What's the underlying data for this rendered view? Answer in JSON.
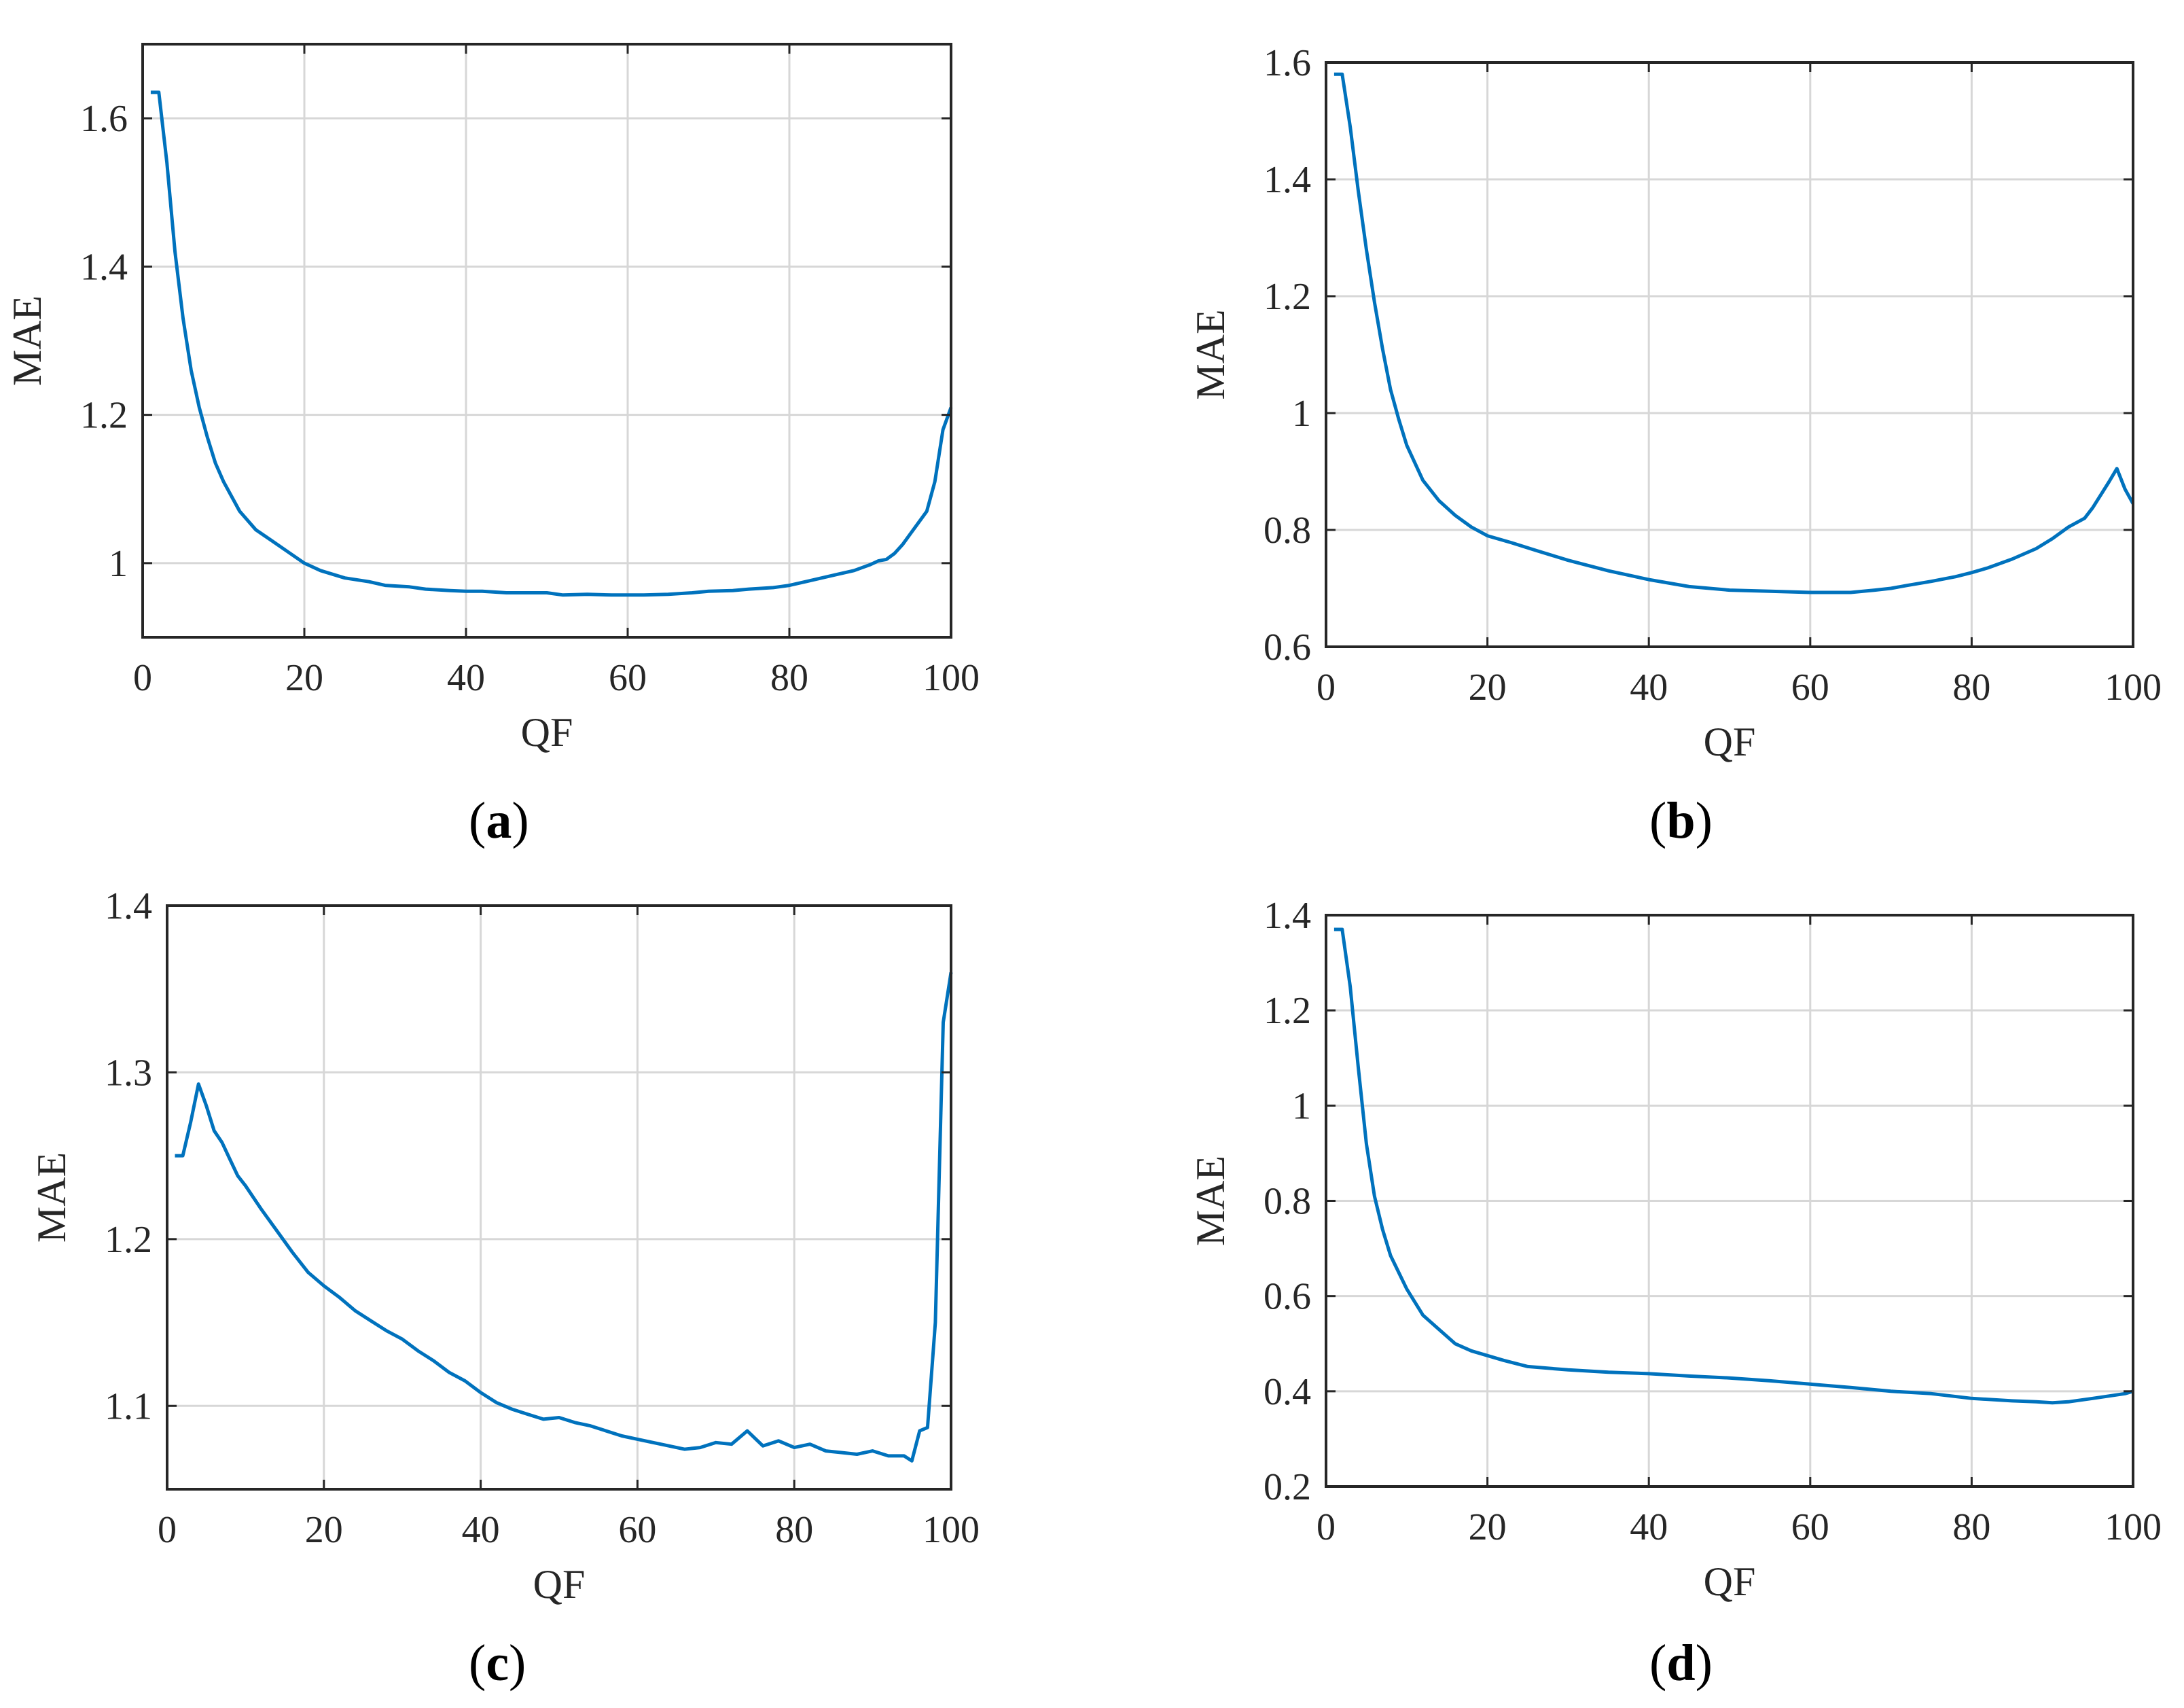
{
  "line_color": "#0072BD",
  "chart_data": [
    {
      "type": "line",
      "caption": {
        "open": "(",
        "letter": "a",
        "close": ")"
      },
      "xlabel": "QF",
      "ylabel": "MAE",
      "xlim": [
        0,
        100
      ],
      "ylim": [
        0.9,
        1.7
      ],
      "xticks": [
        0,
        20,
        40,
        60,
        80,
        100
      ],
      "yticks": [
        1.0,
        1.2,
        1.4,
        1.6
      ],
      "ytick_labels": [
        "1",
        "1.2",
        "1.4",
        "1.6"
      ],
      "grid": true,
      "x": [
        1,
        2,
        3,
        4,
        5,
        6,
        7,
        8,
        9,
        10,
        12,
        14,
        16,
        18,
        20,
        22,
        25,
        28,
        30,
        33,
        35,
        38,
        40,
        42,
        45,
        48,
        50,
        52,
        55,
        58,
        60,
        62,
        65,
        68,
        70,
        73,
        75,
        78,
        80,
        82,
        84,
        86,
        88,
        90,
        91,
        92,
        93,
        94,
        95,
        96,
        97,
        98,
        99,
        100
      ],
      "values": [
        1.635,
        1.635,
        1.54,
        1.42,
        1.33,
        1.26,
        1.21,
        1.17,
        1.135,
        1.11,
        1.07,
        1.045,
        1.03,
        1.015,
        1.0,
        0.99,
        0.98,
        0.975,
        0.97,
        0.968,
        0.965,
        0.963,
        0.962,
        0.962,
        0.96,
        0.96,
        0.96,
        0.957,
        0.958,
        0.957,
        0.957,
        0.957,
        0.958,
        0.96,
        0.962,
        0.963,
        0.965,
        0.967,
        0.97,
        0.975,
        0.98,
        0.985,
        0.99,
        0.998,
        1.003,
        1.005,
        1.013,
        1.025,
        1.04,
        1.055,
        1.07,
        1.11,
        1.18,
        1.21
      ]
    },
    {
      "type": "line",
      "caption": {
        "open": "(",
        "letter": "b",
        "close": ")"
      },
      "xlabel": "QF",
      "ylabel": "MAE",
      "xlim": [
        0,
        100
      ],
      "ylim": [
        0.6,
        1.6
      ],
      "xticks": [
        0,
        20,
        40,
        60,
        80,
        100
      ],
      "yticks": [
        0.6,
        0.8,
        1.0,
        1.2,
        1.4,
        1.6
      ],
      "ytick_labels": [
        "0.6",
        "0.8",
        "1",
        "1.2",
        "1.4",
        "1.6"
      ],
      "grid": true,
      "x": [
        1,
        2,
        3,
        4,
        5,
        6,
        7,
        8,
        9,
        10,
        12,
        14,
        16,
        18,
        20,
        23,
        26,
        30,
        35,
        40,
        45,
        50,
        55,
        60,
        65,
        68,
        70,
        72,
        75,
        78,
        80,
        82,
        85,
        88,
        90,
        92,
        94,
        95,
        96,
        97,
        98,
        99,
        100
      ],
      "values": [
        1.58,
        1.58,
        1.49,
        1.38,
        1.28,
        1.19,
        1.11,
        1.04,
        0.99,
        0.945,
        0.885,
        0.85,
        0.825,
        0.805,
        0.79,
        0.778,
        0.765,
        0.748,
        0.73,
        0.715,
        0.703,
        0.697,
        0.695,
        0.693,
        0.693,
        0.697,
        0.7,
        0.705,
        0.712,
        0.72,
        0.727,
        0.735,
        0.75,
        0.768,
        0.785,
        0.805,
        0.82,
        0.838,
        0.86,
        0.882,
        0.905,
        0.87,
        0.845
      ]
    },
    {
      "type": "line",
      "caption": {
        "open": "(",
        "letter": "c",
        "close": ")"
      },
      "xlabel": "QF",
      "ylabel": "MAE",
      "xlim": [
        0,
        100
      ],
      "ylim": [
        1.05,
        1.4
      ],
      "xticks": [
        0,
        20,
        40,
        60,
        80,
        100
      ],
      "yticks": [
        1.1,
        1.2,
        1.3,
        1.4
      ],
      "ytick_labels": [
        "1.1",
        "1.2",
        "1.3",
        "1.4"
      ],
      "grid": true,
      "x": [
        1,
        2,
        3,
        4,
        5,
        6,
        7,
        8,
        9,
        10,
        12,
        14,
        16,
        18,
        20,
        22,
        24,
        26,
        28,
        30,
        32,
        34,
        36,
        38,
        40,
        42,
        44,
        46,
        48,
        50,
        52,
        54,
        56,
        58,
        60,
        62,
        64,
        66,
        68,
        70,
        72,
        74,
        76,
        78,
        80,
        82,
        84,
        86,
        88,
        90,
        92,
        94,
        95,
        96,
        97,
        98,
        99,
        100
      ],
      "values": [
        1.25,
        1.25,
        1.27,
        1.293,
        1.28,
        1.265,
        1.258,
        1.248,
        1.238,
        1.232,
        1.218,
        1.205,
        1.192,
        1.18,
        1.172,
        1.165,
        1.157,
        1.151,
        1.145,
        1.14,
        1.133,
        1.127,
        1.12,
        1.115,
        1.108,
        1.102,
        1.098,
        1.095,
        1.092,
        1.093,
        1.09,
        1.088,
        1.085,
        1.082,
        1.08,
        1.078,
        1.076,
        1.074,
        1.075,
        1.078,
        1.077,
        1.085,
        1.076,
        1.079,
        1.075,
        1.077,
        1.073,
        1.072,
        1.071,
        1.073,
        1.07,
        1.07,
        1.067,
        1.085,
        1.087,
        1.15,
        1.33,
        1.36
      ]
    },
    {
      "type": "line",
      "caption": {
        "open": "(",
        "letter": "d",
        "close": ")"
      },
      "xlabel": "QF",
      "ylabel": "MAE",
      "xlim": [
        0,
        100
      ],
      "ylim": [
        0.2,
        1.4
      ],
      "xticks": [
        0,
        20,
        40,
        60,
        80,
        100
      ],
      "yticks": [
        0.2,
        0.4,
        0.6,
        0.8,
        1.0,
        1.2,
        1.4
      ],
      "ytick_labels": [
        "0.2",
        "0.4",
        "0.6",
        "0.8",
        "1",
        "1.2",
        "1.4"
      ],
      "grid": true,
      "x": [
        1,
        2,
        3,
        4,
        5,
        6,
        7,
        8,
        9,
        10,
        12,
        14,
        16,
        18,
        20,
        22,
        25,
        30,
        35,
        40,
        45,
        50,
        55,
        60,
        65,
        70,
        75,
        80,
        85,
        88,
        90,
        92,
        95,
        97,
        99,
        100
      ],
      "values": [
        1.37,
        1.37,
        1.25,
        1.08,
        0.92,
        0.81,
        0.74,
        0.685,
        0.65,
        0.615,
        0.56,
        0.53,
        0.5,
        0.485,
        0.475,
        0.465,
        0.452,
        0.445,
        0.44,
        0.437,
        0.432,
        0.428,
        0.422,
        0.415,
        0.408,
        0.4,
        0.395,
        0.385,
        0.38,
        0.378,
        0.376,
        0.378,
        0.385,
        0.39,
        0.395,
        0.4
      ]
    }
  ]
}
